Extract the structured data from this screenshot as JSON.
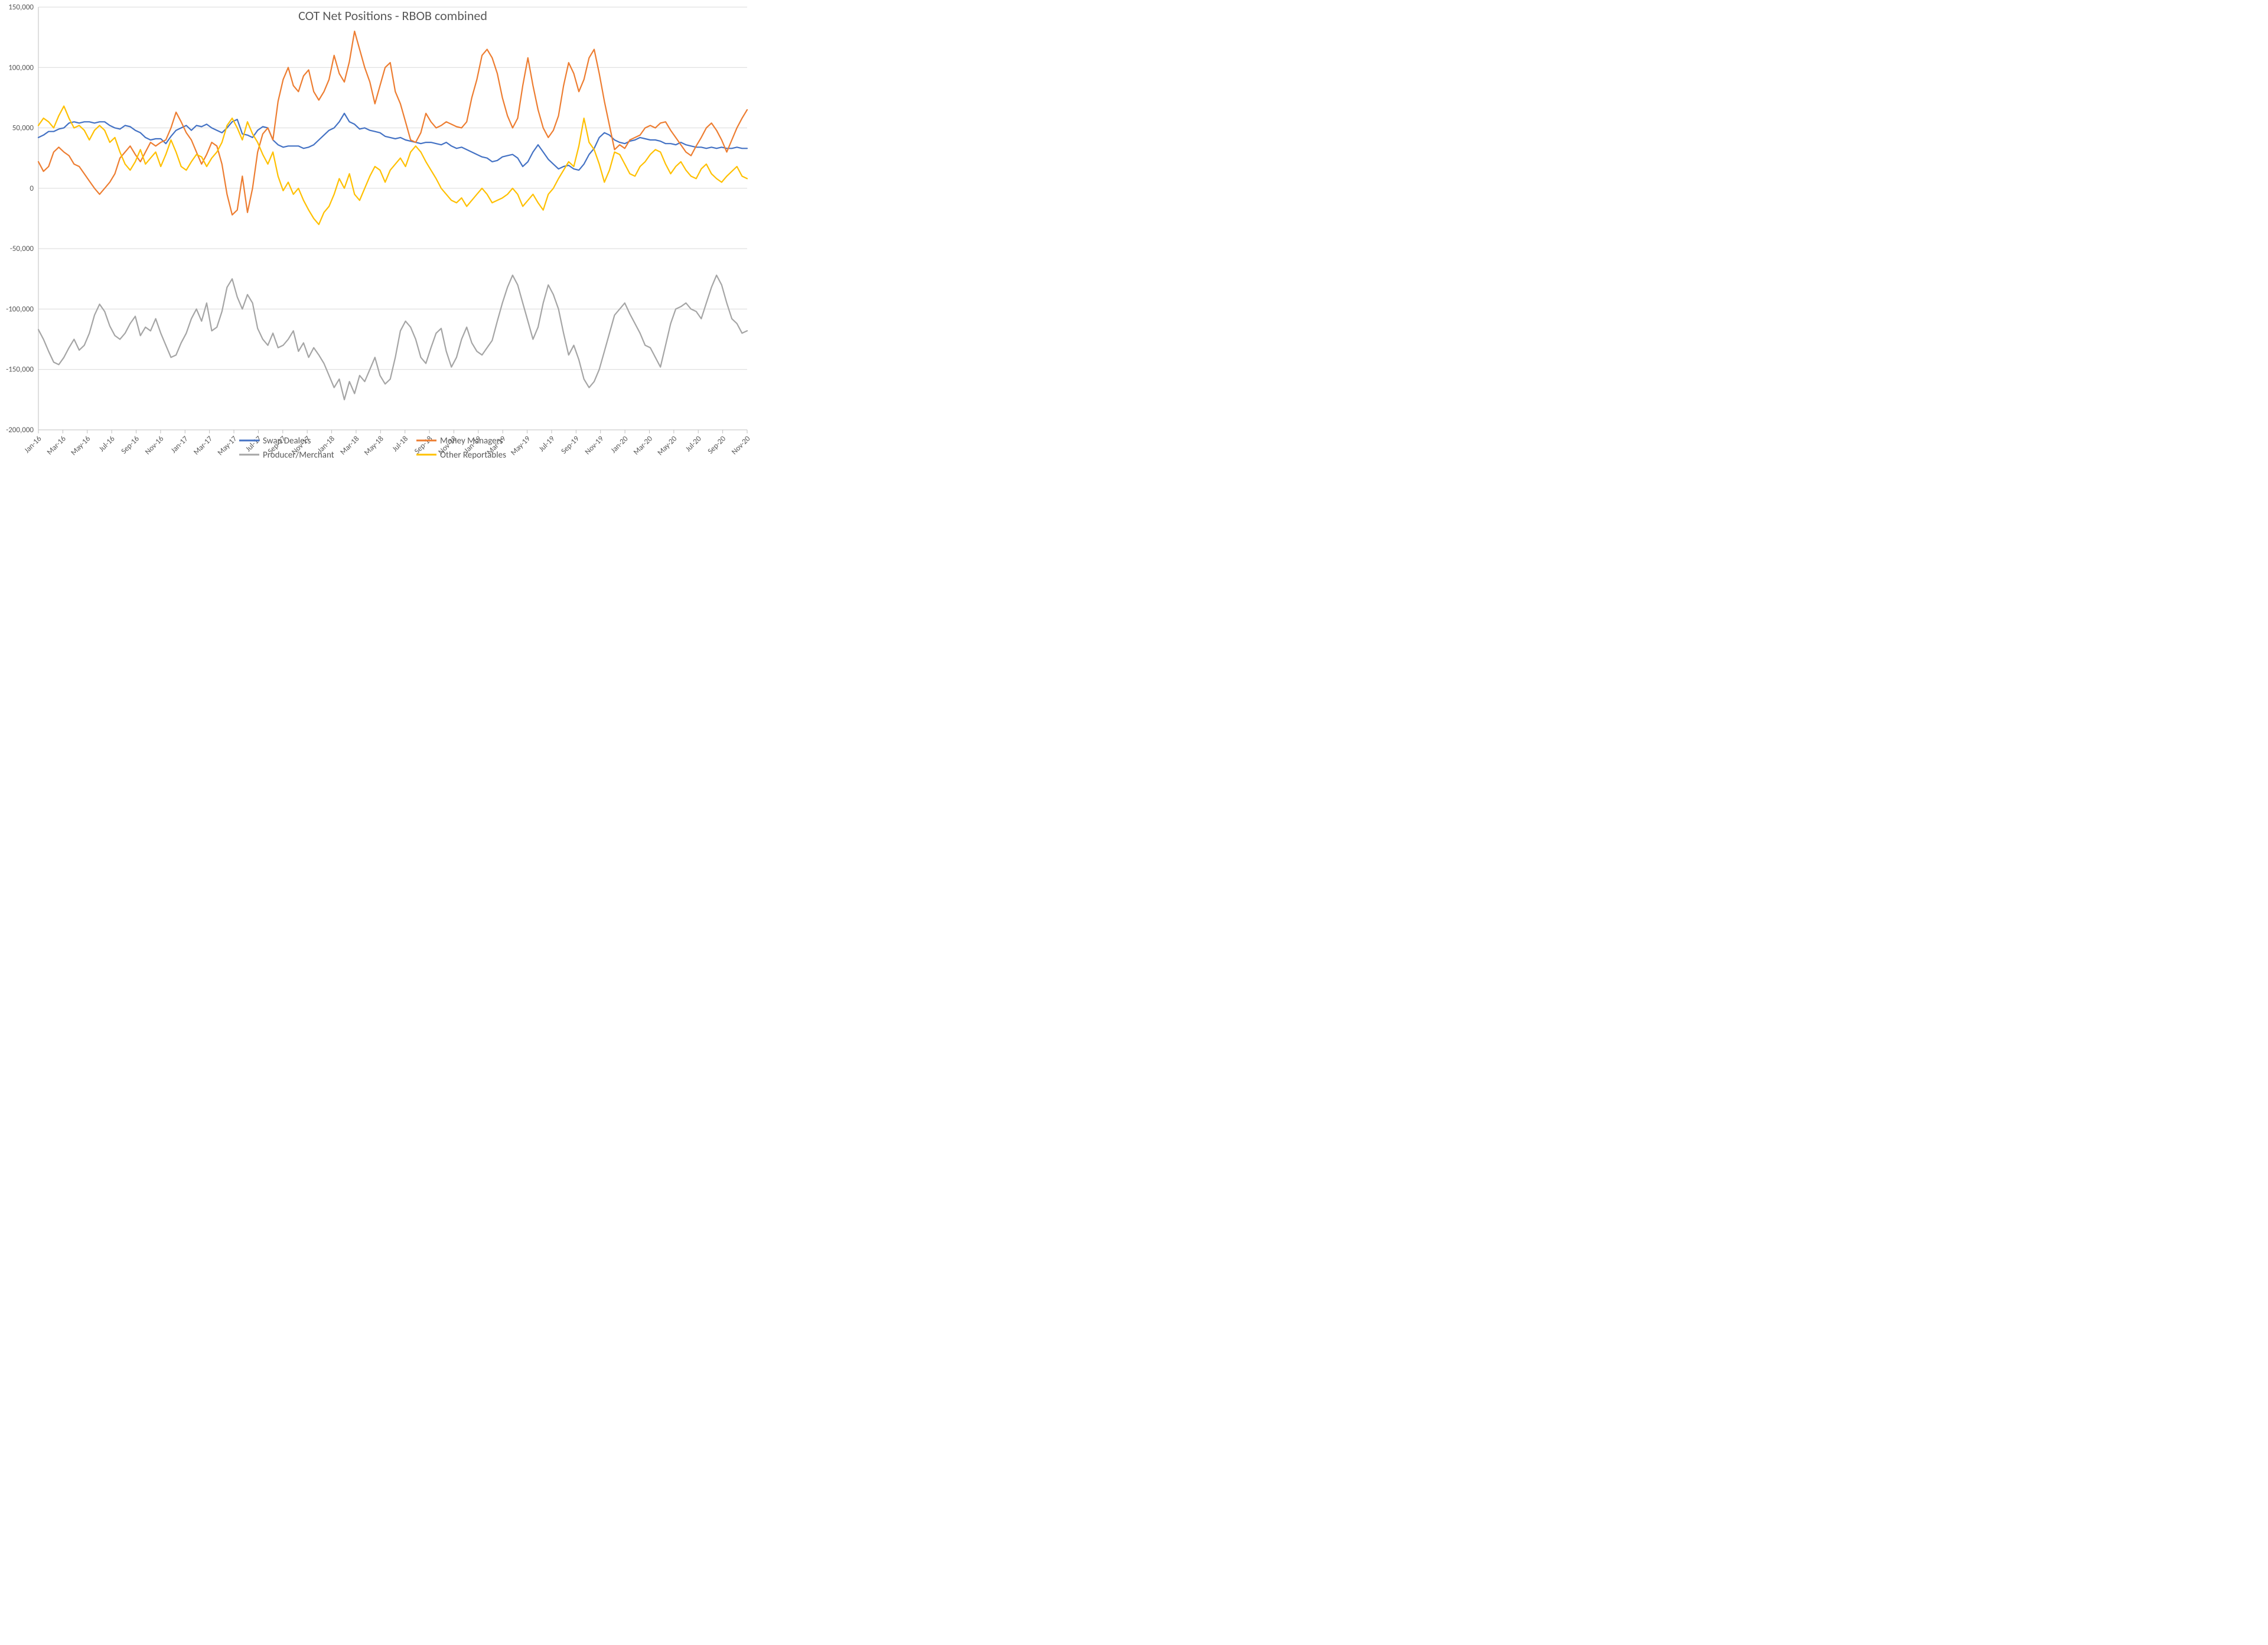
{
  "chart": {
    "type": "line",
    "title": "COT Net Positions - RBOB combined",
    "title_fontsize": 22,
    "title_color": "#595959",
    "background_color": "#ffffff",
    "plot_background_color": "#ffffff",
    "grid_color": "#d9d9d9",
    "axis_line_color": "#bfbfbf",
    "label_color": "#595959",
    "label_fontsize": 13,
    "legend_fontsize": 15,
    "line_width": 2.2,
    "y": {
      "min": -200000,
      "max": 150000,
      "tick_step": 50000,
      "tick_labels": [
        "-200,000",
        "-150,000",
        "-100,000",
        "-50,000",
        "0",
        "50,000",
        "100,000",
        "150,000"
      ]
    },
    "x": {
      "categories": [
        "Jan-16",
        "Mar-16",
        "May-16",
        "Jul-16",
        "Sep-16",
        "Nov-16",
        "Jan-17",
        "Mar-17",
        "May-17",
        "Jul-17",
        "Sep-17",
        "Nov-17",
        "Jan-18",
        "Mar-18",
        "May-18",
        "Jul-18",
        "Sep-18",
        "Nov-18",
        "Jan-19",
        "Mar-19",
        "May-19",
        "Jul-19",
        "Sep-19",
        "Nov-19",
        "Jan-20",
        "Mar-20",
        "May-20",
        "Jul-20",
        "Sep-20",
        "Nov-20"
      ]
    },
    "legend": {
      "columns": 2,
      "position": "bottom",
      "items": [
        {
          "key": "swap",
          "label": "Swap Dealers",
          "color": "#4472c4"
        },
        {
          "key": "mm",
          "label": "Money Managers",
          "color": "#ed7d31"
        },
        {
          "key": "pm",
          "label": "Producer/Merchant",
          "color": "#a5a5a5"
        },
        {
          "key": "other",
          "label": "Other Reportables",
          "color": "#ffc000"
        }
      ]
    },
    "series": {
      "swap": {
        "label": "Swap Dealers",
        "color": "#4472c4",
        "values": [
          42000,
          44000,
          47000,
          47000,
          49000,
          50000,
          54000,
          55000,
          54000,
          55000,
          55000,
          54000,
          55000,
          55000,
          52000,
          50000,
          49000,
          52000,
          51000,
          48000,
          46000,
          42000,
          40000,
          41000,
          41000,
          37000,
          43000,
          48000,
          50000,
          52000,
          48000,
          52000,
          51000,
          53000,
          50000,
          48000,
          46000,
          50000,
          55000,
          57000,
          45000,
          44000,
          42000,
          48000,
          51000,
          50000,
          40000,
          36000,
          34000,
          35000,
          35000,
          35000,
          33000,
          34000,
          36000,
          40000,
          44000,
          48000,
          50000,
          55000,
          62000,
          55000,
          53000,
          49000,
          50000,
          48000,
          47000,
          46000,
          43000,
          42000,
          41000,
          42000,
          40000,
          39000,
          38000,
          37000,
          38000,
          38000,
          37000,
          36000,
          38000,
          35000,
          33000,
          34000,
          32000,
          30000,
          28000,
          26000,
          25000,
          22000,
          23000,
          26000,
          27000,
          28000,
          25000,
          18000,
          22000,
          30000,
          36000,
          30000,
          24000,
          20000,
          16000,
          18000,
          19000,
          16000,
          15000,
          20000,
          28000,
          33000,
          42000,
          46000,
          44000,
          40000,
          38000,
          37000,
          39000,
          40000,
          42000,
          41000,
          40000,
          40000,
          39000,
          37000,
          37000,
          36000,
          38000,
          36000,
          35000,
          34000,
          34000,
          33000,
          34000,
          33000,
          34000,
          33000,
          33000,
          34000,
          33000,
          33000
        ]
      },
      "mm": {
        "label": "Money Managers",
        "color": "#ed7d31",
        "values": [
          22000,
          14000,
          18000,
          30000,
          34000,
          30000,
          27000,
          20000,
          18000,
          12000,
          6000,
          0,
          -5000,
          0,
          5000,
          12000,
          25000,
          30000,
          35000,
          28000,
          22000,
          30000,
          38000,
          35000,
          38000,
          40000,
          50000,
          63000,
          55000,
          46000,
          40000,
          30000,
          20000,
          28000,
          38000,
          35000,
          20000,
          -5000,
          -22000,
          -18000,
          10000,
          -20000,
          0,
          30000,
          45000,
          50000,
          40000,
          72000,
          90000,
          100000,
          85000,
          80000,
          93000,
          98000,
          80000,
          73000,
          80000,
          90000,
          110000,
          95000,
          88000,
          105000,
          130000,
          115000,
          100000,
          88000,
          70000,
          85000,
          100000,
          104000,
          80000,
          70000,
          55000,
          40000,
          38000,
          46000,
          62000,
          55000,
          50000,
          52000,
          55000,
          53000,
          51000,
          50000,
          55000,
          75000,
          90000,
          110000,
          115000,
          108000,
          95000,
          75000,
          60000,
          50000,
          58000,
          85000,
          108000,
          85000,
          65000,
          50000,
          42000,
          48000,
          60000,
          85000,
          104000,
          95000,
          80000,
          90000,
          108000,
          115000,
          95000,
          72000,
          52000,
          32000,
          36000,
          33000,
          40000,
          42000,
          44000,
          50000,
          52000,
          50000,
          54000,
          55000,
          48000,
          42000,
          36000,
          30000,
          27000,
          35000,
          42000,
          50000,
          54000,
          48000,
          40000,
          30000,
          40000,
          50000,
          58000,
          65000
        ]
      },
      "pm": {
        "label": "Producer/Merchant",
        "color": "#a5a5a5",
        "values": [
          -117000,
          -125000,
          -135000,
          -144000,
          -146000,
          -140000,
          -132000,
          -125000,
          -134000,
          -130000,
          -120000,
          -105000,
          -96000,
          -102000,
          -114000,
          -122000,
          -125000,
          -120000,
          -112000,
          -106000,
          -122000,
          -115000,
          -118000,
          -108000,
          -120000,
          -130000,
          -140000,
          -138000,
          -128000,
          -120000,
          -108000,
          -100000,
          -110000,
          -95000,
          -118000,
          -115000,
          -102000,
          -82000,
          -75000,
          -90000,
          -100000,
          -88000,
          -95000,
          -116000,
          -125000,
          -130000,
          -120000,
          -132000,
          -130000,
          -125000,
          -118000,
          -135000,
          -128000,
          -140000,
          -132000,
          -138000,
          -145000,
          -155000,
          -165000,
          -158000,
          -175000,
          -160000,
          -170000,
          -155000,
          -160000,
          -150000,
          -140000,
          -155000,
          -162000,
          -158000,
          -140000,
          -118000,
          -110000,
          -115000,
          -125000,
          -140000,
          -145000,
          -132000,
          -120000,
          -116000,
          -135000,
          -148000,
          -140000,
          -125000,
          -115000,
          -128000,
          -135000,
          -138000,
          -132000,
          -126000,
          -110000,
          -95000,
          -82000,
          -72000,
          -80000,
          -95000,
          -110000,
          -125000,
          -115000,
          -95000,
          -80000,
          -88000,
          -100000,
          -120000,
          -138000,
          -130000,
          -142000,
          -158000,
          -165000,
          -160000,
          -150000,
          -135000,
          -120000,
          -105000,
          -100000,
          -95000,
          -104000,
          -112000,
          -120000,
          -130000,
          -132000,
          -140000,
          -148000,
          -130000,
          -112000,
          -100000,
          -98000,
          -95000,
          -100000,
          -102000,
          -108000,
          -95000,
          -82000,
          -72000,
          -80000,
          -95000,
          -108000,
          -112000,
          -120000,
          -118000
        ]
      },
      "other": {
        "label": "Other Reportables",
        "color": "#ffc000",
        "values": [
          52000,
          58000,
          55000,
          50000,
          60000,
          68000,
          58000,
          50000,
          52000,
          48000,
          40000,
          48000,
          52000,
          48000,
          38000,
          42000,
          30000,
          20000,
          15000,
          22000,
          32000,
          20000,
          25000,
          30000,
          18000,
          28000,
          40000,
          30000,
          18000,
          15000,
          22000,
          28000,
          26000,
          18000,
          25000,
          30000,
          38000,
          52000,
          58000,
          50000,
          40000,
          55000,
          45000,
          38000,
          28000,
          20000,
          30000,
          10000,
          -2000,
          5000,
          -5000,
          0,
          -10000,
          -18000,
          -25000,
          -30000,
          -20000,
          -15000,
          -5000,
          8000,
          0,
          12000,
          -5000,
          -10000,
          0,
          10000,
          18000,
          15000,
          5000,
          15000,
          20000,
          25000,
          18000,
          30000,
          35000,
          30000,
          22000,
          15000,
          8000,
          0,
          -5000,
          -10000,
          -12000,
          -8000,
          -15000,
          -10000,
          -5000,
          0,
          -5000,
          -12000,
          -10000,
          -8000,
          -5000,
          0,
          -5000,
          -15000,
          -10000,
          -5000,
          -12000,
          -18000,
          -5000,
          0,
          8000,
          15000,
          22000,
          18000,
          35000,
          58000,
          38000,
          32000,
          20000,
          5000,
          15000,
          30000,
          28000,
          20000,
          12000,
          10000,
          18000,
          22000,
          28000,
          32000,
          30000,
          20000,
          12000,
          18000,
          22000,
          15000,
          10000,
          8000,
          16000,
          20000,
          12000,
          8000,
          5000,
          10000,
          14000,
          18000,
          10000,
          8000
        ]
      }
    }
  }
}
